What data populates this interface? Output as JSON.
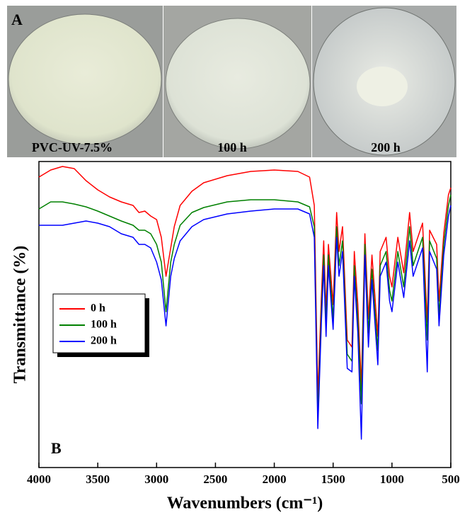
{
  "figure": {
    "panel_a": {
      "label": "A",
      "captions": [
        "PVC-UV-7.5%",
        "100 h",
        "200 h"
      ]
    }
  },
  "chart_data": {
    "type": "line",
    "panel_label": "B",
    "x_label": "Wavenumbers (cm⁻¹)",
    "y_label": "Transmittance (%)",
    "xlim": [
      4000,
      500
    ],
    "xticks": [
      4000,
      3500,
      3000,
      2500,
      2000,
      1500,
      1000,
      500
    ],
    "ylim": [
      0,
      432
    ],
    "legend": "left",
    "x": [
      4000,
      3900,
      3800,
      3700,
      3600,
      3500,
      3400,
      3300,
      3200,
      3150,
      3100,
      3050,
      3000,
      2960,
      2920,
      2880,
      2850,
      2800,
      2700,
      2600,
      2400,
      2200,
      2000,
      1800,
      1700,
      1660,
      1630,
      1600,
      1580,
      1560,
      1540,
      1500,
      1470,
      1450,
      1420,
      1380,
      1340,
      1320,
      1290,
      1260,
      1230,
      1200,
      1170,
      1120,
      1100,
      1050,
      1020,
      1000,
      950,
      900,
      850,
      820,
      780,
      740,
      700,
      680,
      620,
      600,
      560,
      520,
      500
    ],
    "series": [
      {
        "name": "0 h",
        "color": "#ff0000",
        "values": [
          410,
          420,
          425,
          422,
          405,
          392,
          382,
          375,
          370,
          360,
          362,
          355,
          350,
          325,
          270,
          310,
          340,
          370,
          390,
          402,
          412,
          418,
          420,
          418,
          410,
          370,
          100,
          240,
          320,
          220,
          315,
          230,
          360,
          305,
          340,
          180,
          170,
          305,
          230,
          115,
          330,
          210,
          300,
          185,
          305,
          325,
          270,
          255,
          325,
          275,
          360,
          305,
          325,
          345,
          205,
          335,
          315,
          235,
          330,
          385,
          395
        ]
      },
      {
        "name": "100 h",
        "color": "#008000",
        "values": [
          365,
          375,
          375,
          372,
          368,
          362,
          355,
          348,
          342,
          335,
          335,
          330,
          315,
          290,
          220,
          290,
          315,
          342,
          360,
          367,
          375,
          378,
          378,
          375,
          368,
          340,
          70,
          220,
          300,
          200,
          300,
          210,
          340,
          285,
          320,
          160,
          150,
          285,
          210,
          90,
          315,
          190,
          280,
          165,
          285,
          305,
          250,
          235,
          305,
          255,
          340,
          285,
          305,
          325,
          180,
          320,
          295,
          215,
          315,
          370,
          385
        ]
      },
      {
        "name": "200 h",
        "color": "#0000ff",
        "values": [
          342,
          342,
          342,
          345,
          348,
          345,
          340,
          330,
          325,
          315,
          315,
          310,
          290,
          265,
          200,
          270,
          295,
          320,
          340,
          350,
          358,
          362,
          365,
          365,
          358,
          325,
          55,
          205,
          285,
          185,
          285,
          195,
          325,
          270,
          305,
          140,
          135,
          270,
          190,
          40,
          300,
          170,
          265,
          145,
          270,
          290,
          235,
          220,
          290,
          240,
          320,
          270,
          290,
          310,
          135,
          305,
          280,
          200,
          300,
          355,
          370
        ]
      }
    ]
  }
}
